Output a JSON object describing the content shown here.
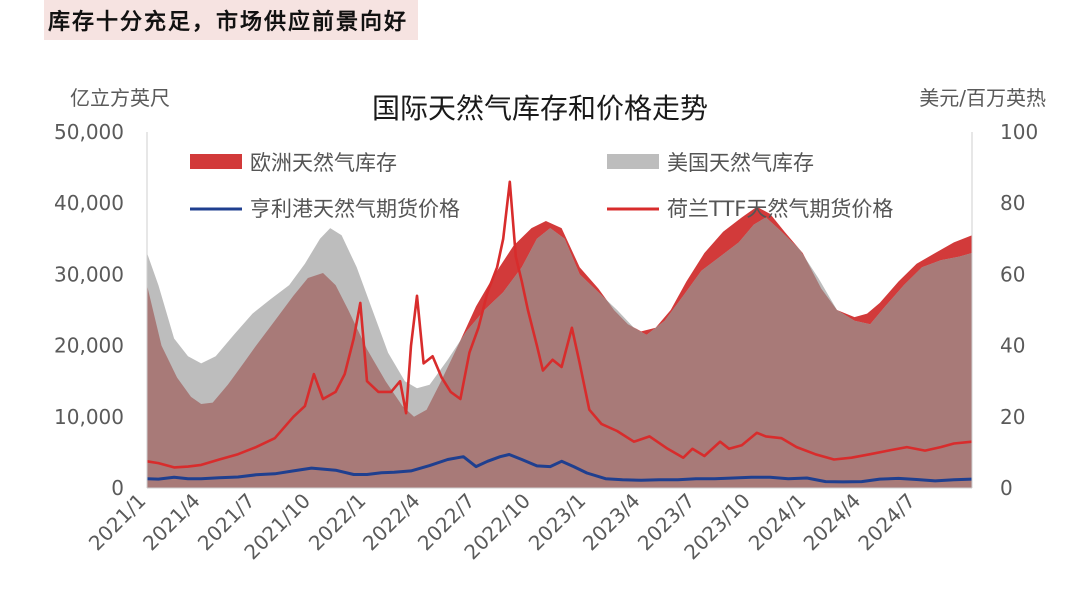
{
  "heading": "库存十分充足，市场供应前景向好",
  "chart_data": {
    "type": "area",
    "title": "国际天然气库存和价格走势",
    "left_unit": "亿立方英尺",
    "right_unit": "美元/百万英热",
    "ylim_left": [
      0,
      50000
    ],
    "ylim_right": [
      0,
      100
    ],
    "left_ticks": [
      "0",
      "10,000",
      "20,000",
      "30,000",
      "40,000",
      "50,000"
    ],
    "right_ticks": [
      "0",
      "20",
      "40",
      "60",
      "80",
      "100"
    ],
    "x_ticks": [
      "2021/1",
      "2021/4",
      "2021/7",
      "2021/10",
      "2022/1",
      "2022/4",
      "2022/7",
      "2022/10",
      "2023/1",
      "2023/4",
      "2023/7",
      "2023/10",
      "2024/1",
      "2024/4",
      "2024/7"
    ],
    "x_range": [
      "2021-01",
      "2024-10"
    ],
    "colors": {
      "eu": "#d23a3a",
      "us": "#bdbdbd",
      "overlap": "#a87a78",
      "hh": "#1f3f8f",
      "ttf": "#d82c2c"
    },
    "series": [
      {
        "name": "欧洲天然气库存",
        "axis": "left",
        "style": "area",
        "points": [
          [
            "2021-01-01",
            28500
          ],
          [
            "2021-01-25",
            20000
          ],
          [
            "2021-02-20",
            15500
          ],
          [
            "2021-03-15",
            12800
          ],
          [
            "2021-04-01",
            11800
          ],
          [
            "2021-04-20",
            12000
          ],
          [
            "2021-05-15",
            14500
          ],
          [
            "2021-06-10",
            17500
          ],
          [
            "2021-07-01",
            20000
          ],
          [
            "2021-08-01",
            23500
          ],
          [
            "2021-09-01",
            27000
          ],
          [
            "2021-09-25",
            29500
          ],
          [
            "2021-10-20",
            30200
          ],
          [
            "2021-11-10",
            28500
          ],
          [
            "2021-12-01",
            25000
          ],
          [
            "2022-01-01",
            19500
          ],
          [
            "2022-02-01",
            15000
          ],
          [
            "2022-03-01",
            11500
          ],
          [
            "2022-03-20",
            10000
          ],
          [
            "2022-04-10",
            11000
          ],
          [
            "2022-05-01",
            14500
          ],
          [
            "2022-06-01",
            20000
          ],
          [
            "2022-07-01",
            25500
          ],
          [
            "2022-08-01",
            30000
          ],
          [
            "2022-09-01",
            34000
          ],
          [
            "2022-10-01",
            36500
          ],
          [
            "2022-10-25",
            37500
          ],
          [
            "2022-11-20",
            36500
          ],
          [
            "2022-12-20",
            31000
          ],
          [
            "2023-01-20",
            28000
          ],
          [
            "2023-02-15",
            25000
          ],
          [
            "2023-03-10",
            23000
          ],
          [
            "2023-04-01",
            22000
          ],
          [
            "2023-04-25",
            22500
          ],
          [
            "2023-05-20",
            25000
          ],
          [
            "2023-06-15",
            29000
          ],
          [
            "2023-07-15",
            33000
          ],
          [
            "2023-08-15",
            36000
          ],
          [
            "2023-09-15",
            38000
          ],
          [
            "2023-10-10",
            39500
          ],
          [
            "2023-11-01",
            38500
          ],
          [
            "2023-11-25",
            36000
          ],
          [
            "2023-12-25",
            33000
          ],
          [
            "2024-01-25",
            28000
          ],
          [
            "2024-02-20",
            25000
          ],
          [
            "2024-03-20",
            24000
          ],
          [
            "2024-04-10",
            24500
          ],
          [
            "2024-05-01",
            26000
          ],
          [
            "2024-06-01",
            29000
          ],
          [
            "2024-07-01",
            31500
          ],
          [
            "2024-08-01",
            33000
          ],
          [
            "2024-09-01",
            34500
          ],
          [
            "2024-10-01",
            35500
          ]
        ]
      },
      {
        "name": "美国天然气库存",
        "axis": "left",
        "style": "area",
        "points": [
          [
            "2021-01-01",
            33000
          ],
          [
            "2021-01-20",
            28500
          ],
          [
            "2021-02-15",
            21000
          ],
          [
            "2021-03-10",
            18500
          ],
          [
            "2021-04-01",
            17500
          ],
          [
            "2021-04-25",
            18500
          ],
          [
            "2021-05-25",
            21500
          ],
          [
            "2021-06-25",
            24500
          ],
          [
            "2021-07-25",
            26500
          ],
          [
            "2021-08-25",
            28500
          ],
          [
            "2021-09-20",
            31500
          ],
          [
            "2021-10-15",
            35000
          ],
          [
            "2021-11-01",
            36500
          ],
          [
            "2021-11-20",
            35500
          ],
          [
            "2021-12-15",
            31000
          ],
          [
            "2022-01-10",
            25000
          ],
          [
            "2022-02-05",
            19000
          ],
          [
            "2022-03-05",
            15000
          ],
          [
            "2022-03-25",
            14000
          ],
          [
            "2022-04-15",
            14500
          ],
          [
            "2022-05-15",
            18000
          ],
          [
            "2022-06-15",
            22000
          ],
          [
            "2022-07-15",
            25000
          ],
          [
            "2022-08-15",
            27500
          ],
          [
            "2022-09-15",
            31000
          ],
          [
            "2022-10-10",
            35000
          ],
          [
            "2022-11-01",
            36500
          ],
          [
            "2022-11-25",
            35000
          ],
          [
            "2022-12-20",
            30000
          ],
          [
            "2023-01-20",
            27500
          ],
          [
            "2023-02-20",
            25000
          ],
          [
            "2023-03-20",
            22500
          ],
          [
            "2023-04-10",
            21500
          ],
          [
            "2023-05-10",
            23500
          ],
          [
            "2023-06-10",
            27000
          ],
          [
            "2023-07-10",
            30500
          ],
          [
            "2023-08-10",
            32500
          ],
          [
            "2023-09-10",
            34500
          ],
          [
            "2023-10-05",
            37000
          ],
          [
            "2023-10-25",
            38000
          ],
          [
            "2023-11-20",
            36000
          ],
          [
            "2023-12-20",
            33500
          ],
          [
            "2024-01-20",
            29500
          ],
          [
            "2024-02-20",
            25000
          ],
          [
            "2024-03-20",
            23500
          ],
          [
            "2024-04-15",
            23000
          ],
          [
            "2024-05-10",
            25500
          ],
          [
            "2024-06-10",
            28500
          ],
          [
            "2024-07-10",
            31000
          ],
          [
            "2024-08-10",
            32000
          ],
          [
            "2024-09-10",
            32500
          ],
          [
            "2024-10-01",
            33000
          ]
        ]
      },
      {
        "name": "亨利港天然气期货价格",
        "axis": "right",
        "style": "line",
        "points": [
          [
            "2021-01-01",
            2.6
          ],
          [
            "2021-01-20",
            2.5
          ],
          [
            "2021-02-15",
            3.0
          ],
          [
            "2021-03-10",
            2.6
          ],
          [
            "2021-04-01",
            2.6
          ],
          [
            "2021-05-01",
            2.9
          ],
          [
            "2021-06-01",
            3.1
          ],
          [
            "2021-07-01",
            3.7
          ],
          [
            "2021-08-01",
            4.0
          ],
          [
            "2021-09-01",
            4.8
          ],
          [
            "2021-10-01",
            5.6
          ],
          [
            "2021-10-20",
            5.3
          ],
          [
            "2021-11-10",
            5.0
          ],
          [
            "2021-12-10",
            3.8
          ],
          [
            "2022-01-01",
            3.8
          ],
          [
            "2022-01-25",
            4.3
          ],
          [
            "2022-02-15",
            4.4
          ],
          [
            "2022-03-15",
            4.8
          ],
          [
            "2022-04-15",
            6.3
          ],
          [
            "2022-05-15",
            8.0
          ],
          [
            "2022-06-10",
            8.8
          ],
          [
            "2022-07-01",
            6.0
          ],
          [
            "2022-07-20",
            7.5
          ],
          [
            "2022-08-10",
            8.8
          ],
          [
            "2022-08-25",
            9.4
          ],
          [
            "2022-09-15",
            8.0
          ],
          [
            "2022-10-10",
            6.2
          ],
          [
            "2022-11-01",
            6.0
          ],
          [
            "2022-11-20",
            7.5
          ],
          [
            "2022-12-10",
            6.0
          ],
          [
            "2023-01-01",
            4.2
          ],
          [
            "2023-02-01",
            2.6
          ],
          [
            "2023-03-01",
            2.3
          ],
          [
            "2023-04-01",
            2.2
          ],
          [
            "2023-05-01",
            2.3
          ],
          [
            "2023-06-01",
            2.3
          ],
          [
            "2023-07-01",
            2.6
          ],
          [
            "2023-08-01",
            2.6
          ],
          [
            "2023-09-01",
            2.8
          ],
          [
            "2023-10-01",
            3.0
          ],
          [
            "2023-11-01",
            3.0
          ],
          [
            "2023-12-01",
            2.6
          ],
          [
            "2024-01-01",
            2.8
          ],
          [
            "2024-02-01",
            1.8
          ],
          [
            "2024-03-01",
            1.7
          ],
          [
            "2024-04-01",
            1.8
          ],
          [
            "2024-05-01",
            2.5
          ],
          [
            "2024-06-01",
            2.7
          ],
          [
            "2024-07-01",
            2.4
          ],
          [
            "2024-08-01",
            2.0
          ],
          [
            "2024-09-01",
            2.3
          ],
          [
            "2024-10-01",
            2.5
          ]
        ]
      },
      {
        "name": "荷兰TTF天然气期货价格",
        "axis": "right",
        "style": "line",
        "points": [
          [
            "2021-01-01",
            7.5
          ],
          [
            "2021-01-20",
            7.0
          ],
          [
            "2021-02-15",
            5.8
          ],
          [
            "2021-03-10",
            6.0
          ],
          [
            "2021-04-01",
            6.5
          ],
          [
            "2021-05-01",
            8.0
          ],
          [
            "2021-06-01",
            9.5
          ],
          [
            "2021-07-01",
            11.5
          ],
          [
            "2021-08-01",
            14.0
          ],
          [
            "2021-09-01",
            20.0
          ],
          [
            "2021-09-20",
            23.0
          ],
          [
            "2021-10-05",
            32.0
          ],
          [
            "2021-10-20",
            25.0
          ],
          [
            "2021-11-10",
            27.0
          ],
          [
            "2021-11-25",
            32.0
          ],
          [
            "2021-12-10",
            42.0
          ],
          [
            "2021-12-21",
            52.0
          ],
          [
            "2022-01-01",
            30.0
          ],
          [
            "2022-01-20",
            27.0
          ],
          [
            "2022-02-10",
            27.0
          ],
          [
            "2022-02-25",
            30.0
          ],
          [
            "2022-03-07",
            21.0
          ],
          [
            "2022-03-15",
            40.0
          ],
          [
            "2022-03-25",
            54.0
          ],
          [
            "2022-04-05",
            35.0
          ],
          [
            "2022-04-20",
            37.0
          ],
          [
            "2022-05-05",
            31.0
          ],
          [
            "2022-05-20",
            27.0
          ],
          [
            "2022-06-05",
            25.0
          ],
          [
            "2022-06-20",
            38.0
          ],
          [
            "2022-07-05",
            45.0
          ],
          [
            "2022-07-20",
            55.0
          ],
          [
            "2022-08-05",
            62.0
          ],
          [
            "2022-08-15",
            70.0
          ],
          [
            "2022-08-26",
            86.0
          ],
          [
            "2022-09-05",
            65.0
          ],
          [
            "2022-09-15",
            58.0
          ],
          [
            "2022-09-25",
            50.0
          ],
          [
            "2022-10-10",
            40.0
          ],
          [
            "2022-10-20",
            33.0
          ],
          [
            "2022-11-05",
            36.0
          ],
          [
            "2022-11-20",
            34.0
          ],
          [
            "2022-12-07",
            45.0
          ],
          [
            "2022-12-20",
            35.0
          ],
          [
            "2023-01-05",
            22.0
          ],
          [
            "2023-01-25",
            18.0
          ],
          [
            "2023-02-20",
            16.0
          ],
          [
            "2023-03-20",
            13.0
          ],
          [
            "2023-04-15",
            14.5
          ],
          [
            "2023-05-15",
            11.0
          ],
          [
            "2023-06-10",
            8.5
          ],
          [
            "2023-06-25",
            11.0
          ],
          [
            "2023-07-15",
            9.0
          ],
          [
            "2023-08-10",
            13.0
          ],
          [
            "2023-08-25",
            11.0
          ],
          [
            "2023-09-15",
            12.0
          ],
          [
            "2023-10-10",
            15.5
          ],
          [
            "2023-10-25",
            14.5
          ],
          [
            "2023-11-20",
            14.0
          ],
          [
            "2023-12-15",
            11.5
          ],
          [
            "2024-01-15",
            9.5
          ],
          [
            "2024-02-15",
            8.0
          ],
          [
            "2024-03-15",
            8.5
          ],
          [
            "2024-04-15",
            9.5
          ],
          [
            "2024-05-15",
            10.5
          ],
          [
            "2024-06-15",
            11.5
          ],
          [
            "2024-07-15",
            10.5
          ],
          [
            "2024-08-10",
            11.5
          ],
          [
            "2024-09-01",
            12.5
          ],
          [
            "2024-10-01",
            13.0
          ]
        ]
      }
    ]
  }
}
